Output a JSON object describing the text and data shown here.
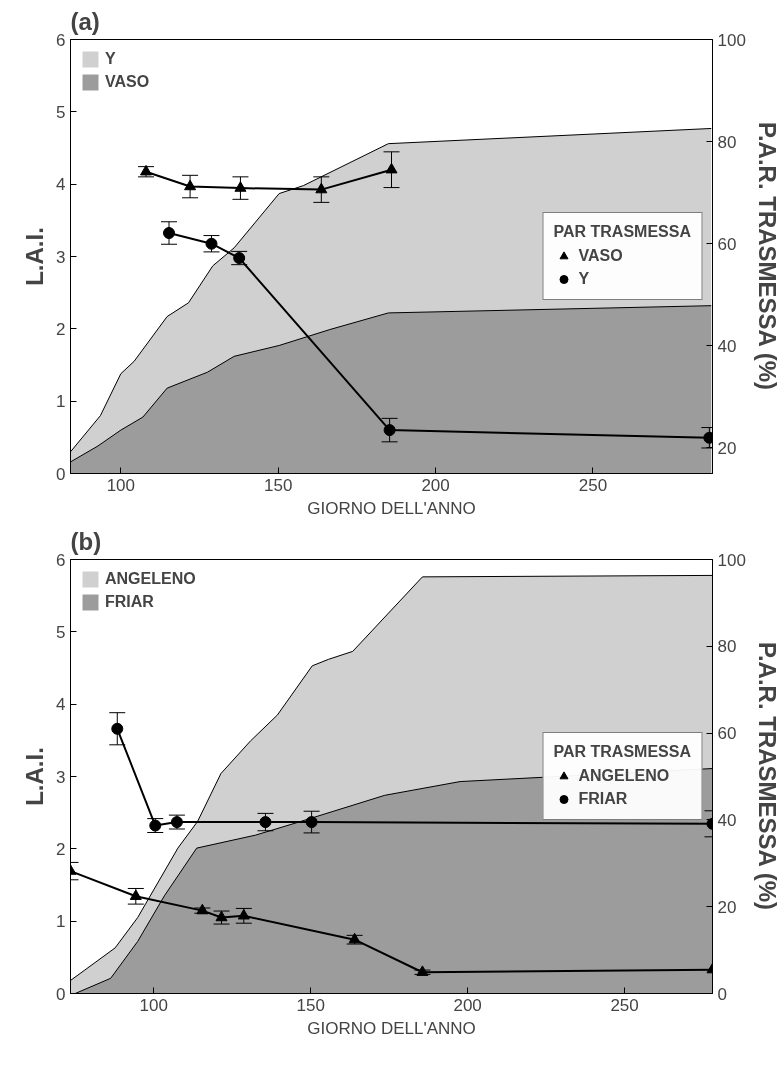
{
  "chart_data": [
    {
      "type": "area",
      "title": "(a)",
      "xlabel": "GIORNO DELL'ANNO",
      "ylabel": "L.A.I.",
      "y2label": "P.A.R. TRASMESSA (%)",
      "legend_title": "PAR TRASMESSA",
      "legend": "top left",
      "grid": false,
      "xlim": [
        84,
        288
      ],
      "xticks": [
        100,
        150,
        200,
        250
      ],
      "ylim": [
        0,
        6
      ],
      "yticks": [
        0,
        1,
        2,
        3,
        4,
        5,
        6
      ],
      "y2lim": [
        15,
        100
      ],
      "y2ticks": [
        20,
        40,
        60,
        80,
        100
      ],
      "series": [
        {
          "name": "Y",
          "color": "#d0d0d0",
          "x": [
            84,
            93.5,
            100,
            104.2,
            114.7,
            121.5,
            129.2,
            136,
            150.3,
            158,
            185,
            287.6
          ],
          "values": [
            0.3,
            0.8,
            1.38,
            1.55,
            2.17,
            2.36,
            2.87,
            3.12,
            3.87,
            3.98,
            4.56,
            4.77
          ]
        },
        {
          "name": "VASO",
          "color": "#9c9c9c",
          "x": [
            84,
            92.7,
            100,
            107,
            114.7,
            127.5,
            136,
            150.3,
            166.4,
            185,
            287.6
          ],
          "values": [
            0.16,
            0.38,
            0.6,
            0.78,
            1.18,
            1.4,
            1.62,
            1.77,
            1.99,
            2.22,
            2.32
          ]
        },
        {
          "name": "VASO",
          "type": "line",
          "axis": "y2",
          "color": "#000000",
          "marker": "triangle",
          "x": [
            108,
            122,
            138,
            163.7,
            186
          ],
          "values": [
            74.1,
            71.2,
            70.9,
            70.6,
            74.5
          ],
          "errors": [
            1,
            2.2,
            2.2,
            2.5,
            3.5
          ]
        },
        {
          "name": "Y",
          "type": "line",
          "axis": "y2",
          "color": "#000000",
          "marker": "circle",
          "x": [
            115.3,
            128.8,
            137.6,
            185.4,
            287
          ],
          "values": [
            62.1,
            60,
            57.2,
            23.5,
            22
          ],
          "errors": [
            2.2,
            1.6,
            1.3,
            2.3,
            2
          ]
        }
      ]
    },
    {
      "type": "area",
      "title": "(b)",
      "xlabel": "GIORNO DELL'ANNO",
      "ylabel": "L.A.I.",
      "y2label": "P.A.R. TRASMESSA (%)",
      "legend_title": "PAR TRASMESSA",
      "legend": "top left",
      "grid": false,
      "xlim": [
        73.5,
        278
      ],
      "xticks": [
        100,
        150,
        200,
        250
      ],
      "ylim": [
        0,
        6
      ],
      "yticks": [
        0,
        1,
        2,
        3,
        4,
        5,
        6
      ],
      "y2lim": [
        0,
        100
      ],
      "y2ticks": [
        0,
        20,
        40,
        60,
        80,
        100
      ],
      "series": [
        {
          "name": "ANGELENO",
          "color": "#d0d0d0",
          "x": [
            73.5,
            87.7,
            94.9,
            107.7,
            114,
            121.4,
            130.8,
            139.4,
            150.5,
            155.7,
            163.4,
            185.6,
            278
          ],
          "values": [
            0.18,
            0.63,
            1.05,
            2.01,
            2.38,
            3.04,
            3.49,
            3.85,
            4.53,
            4.62,
            4.73,
            5.76,
            5.78
          ]
        },
        {
          "name": "FRIAR",
          "color": "#9c9c9c",
          "x": [
            75,
            86.3,
            94.9,
            103.4,
            113.7,
            132.5,
            146.2,
            173.6,
            197.6,
            278
          ],
          "values": [
            0,
            0.21,
            0.72,
            1.35,
            2.01,
            2.19,
            2.37,
            2.74,
            2.93,
            3.11
          ]
        },
        {
          "name": "ANGELENO",
          "type": "line",
          "axis": "y2",
          "color": "#000000",
          "marker": "triangle",
          "x": [
            73.5,
            94.3,
            115.5,
            121.6,
            128.7,
            164,
            185.6,
            278
          ],
          "values": [
            28.2,
            22.4,
            19.1,
            17.5,
            17.9,
            12.4,
            4.9,
            5.5
          ],
          "errors": [
            2,
            1.8,
            0.6,
            1.5,
            1.7,
            1,
            0.5,
            null
          ]
        },
        {
          "name": "FRIAR",
          "type": "line",
          "axis": "y2",
          "color": "#000000",
          "marker": "circle",
          "x": [
            88.4,
            100.5,
            107.4,
            135.6,
            150.3,
            278
          ],
          "values": [
            61,
            38.7,
            39.5,
            39.5,
            39.5,
            39.1
          ],
          "errors": [
            3.7,
            1.6,
            1.6,
            2,
            2.5,
            3
          ]
        }
      ]
    }
  ]
}
